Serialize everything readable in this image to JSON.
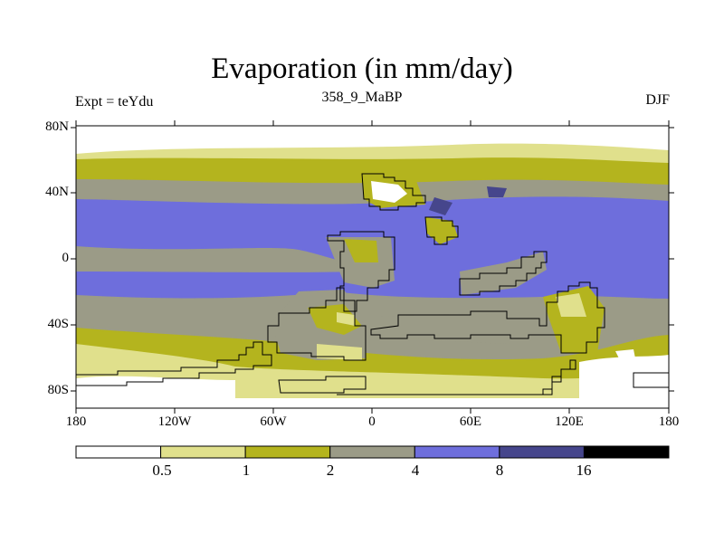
{
  "title": "Evaporation (in mm/day)",
  "left_string": "Expt = teYdu",
  "center_string": "358_9_MaBP",
  "right_string": "DJF",
  "lat_labels": [
    "80N",
    "40N",
    "0",
    "40S",
    "80S"
  ],
  "lon_labels": [
    "180",
    "120W",
    "60W",
    "0",
    "60E",
    "120E",
    "180"
  ],
  "colorbar": {
    "colors": [
      "#ffffff",
      "#e0e08c",
      "#b4b41e",
      "#9b9b87",
      "#6e6edc",
      "#46468c",
      "#000000"
    ],
    "labels": [
      "0.5",
      "1",
      "2",
      "4",
      "8",
      "16"
    ]
  }
}
